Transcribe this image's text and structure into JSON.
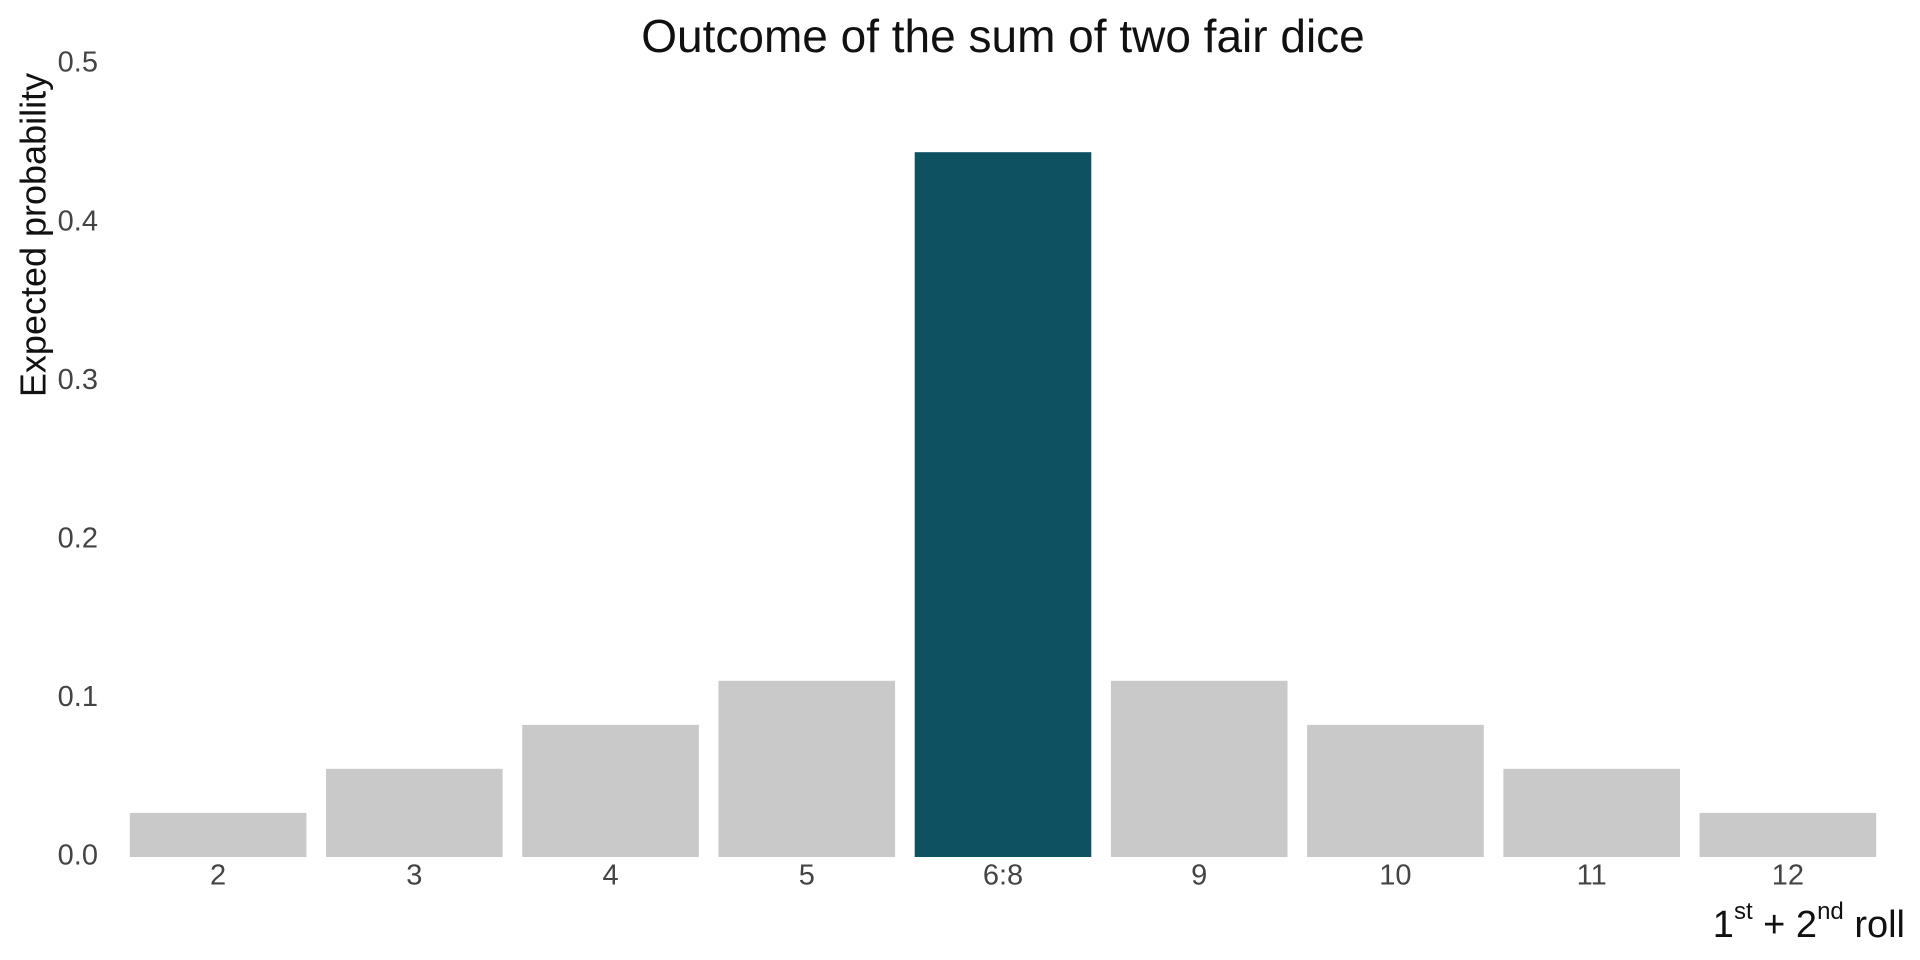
{
  "chart_data": {
    "type": "bar",
    "title": "Outcome of the sum of two fair dice",
    "y_label": "Expected probability",
    "x_label": [
      "1",
      "st",
      " + 2",
      "nd",
      " roll"
    ],
    "categories": [
      "2",
      "3",
      "4",
      "5",
      "6:8",
      "9",
      "10",
      "11",
      "12"
    ],
    "values": [
      0.0278,
      0.0556,
      0.0833,
      0.1111,
      0.4444,
      0.1111,
      0.0833,
      0.0556,
      0.0278
    ],
    "colors": [
      "#c9c9c9",
      "#c9c9c9",
      "#c9c9c9",
      "#c9c9c9",
      "#0e5262",
      "#c9c9c9",
      "#c9c9c9",
      "#c9c9c9",
      "#c9c9c9"
    ],
    "ylim": [
      0,
      0.5
    ],
    "yticks": [
      {
        "value": 0,
        "label": "0.0"
      },
      0.1,
      0.2,
      0.3,
      0.4,
      0.5
    ],
    "grid": false
  }
}
